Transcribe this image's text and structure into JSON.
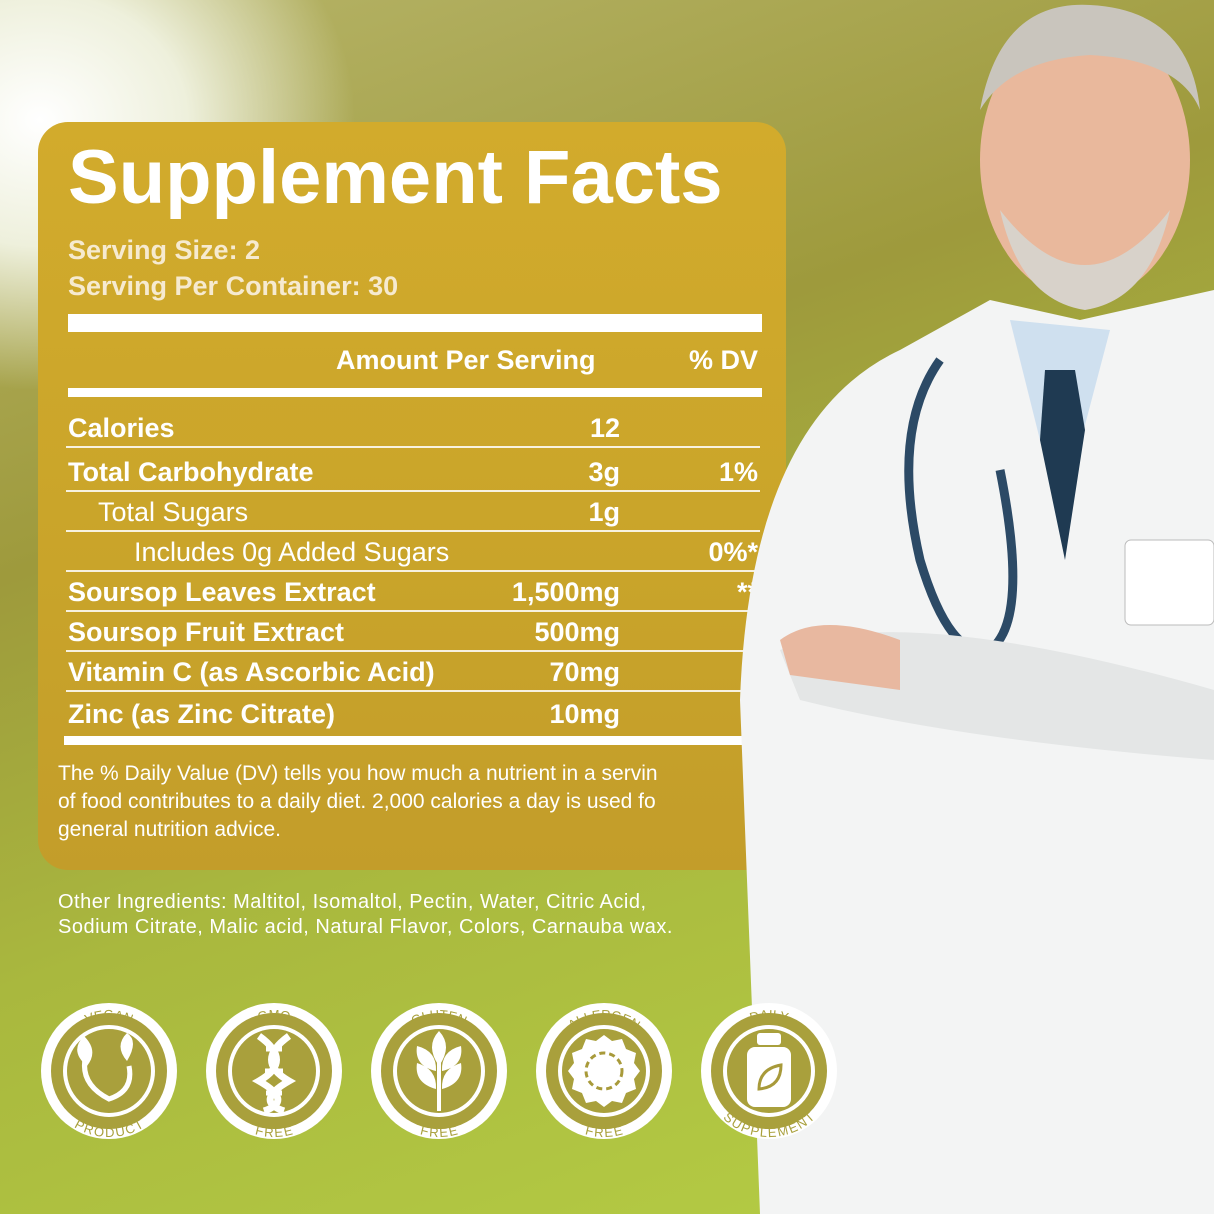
{
  "title": "Supplement Facts",
  "serving_size": "Serving Size: 2",
  "serving_per_container": "Serving Per Container: 30",
  "header": {
    "amount": "Amount Per Serving",
    "dv": "% DV"
  },
  "rows": [
    {
      "name": "Calories",
      "amount": "12",
      "dv": ""
    },
    {
      "name": "Total Carbohydrate",
      "amount": "3g",
      "dv": "1%"
    },
    {
      "name": "Total Sugars",
      "amount": "1g",
      "dv": ""
    },
    {
      "name": "Includes 0g Added Sugars",
      "amount": "",
      "dv": "0%*"
    },
    {
      "name": "Soursop Leaves Extract",
      "amount": "1,500mg",
      "dv": "**"
    },
    {
      "name": "Soursop Fruit Extract",
      "amount": "500mg",
      "dv": "*"
    },
    {
      "name": "Vitamin C (as Ascorbic Acid)",
      "amount": "70mg",
      "dv": "*"
    },
    {
      "name": "Zinc (as Zinc Citrate)",
      "amount": "10mg",
      "dv": "*"
    }
  ],
  "dv_note": [
    "The % Daily Value (DV) tells you how much a nutrient in a  servin",
    "of food contributes to a daily diet. 2,000 calories a  day is used fo",
    "general nutrition advice."
  ],
  "other_ingredients": [
    "Other Ingredients: Maltitol, Isomaltol, Pectin, Water, Citric Acid,",
    "Sodium Citrate, Malic acid, Natural Flavor, Colors, Carnauba wax."
  ],
  "badges": [
    {
      "top": "VEGAN",
      "bottom": "PRODUCT",
      "icon": "leaves-icon"
    },
    {
      "top": "GMO",
      "bottom": "FREE",
      "icon": "dna-icon"
    },
    {
      "top": "GLUTEN",
      "bottom": "FREE",
      "icon": "wheat-icon"
    },
    {
      "top": "ALLERGEN",
      "bottom": "FREE",
      "icon": "allergen-icon"
    },
    {
      "top": "DAILY",
      "bottom": "SUPPLEMENT",
      "icon": "bottle-icon"
    }
  ],
  "colors": {
    "panel": "#c9a42a",
    "background_green": "#a9b83e"
  }
}
